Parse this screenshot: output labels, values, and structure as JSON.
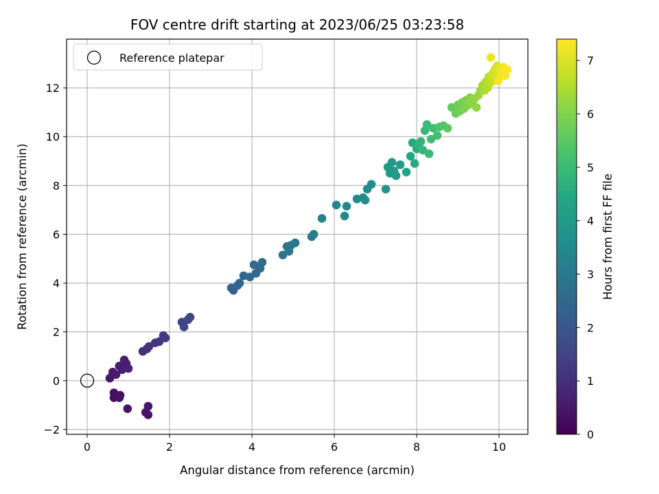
{
  "chart_data": {
    "type": "scatter",
    "title": "FOV centre drift starting at 2023/06/25 03:23:58",
    "xlabel": "Angular distance from reference (arcmin)",
    "ylabel": "Rotation from reference (arcmin)",
    "xlim": [
      -0.5,
      10.7
    ],
    "ylim": [
      -2.2,
      14.0
    ],
    "xticks": [
      0,
      2,
      4,
      6,
      8,
      10
    ],
    "yticks": [
      -2,
      0,
      2,
      4,
      6,
      8,
      10,
      12
    ],
    "grid": true,
    "legend": {
      "placement": "top-left",
      "entries": [
        "Reference platepar"
      ]
    },
    "reference_point": {
      "x": 0,
      "y": 0,
      "label": "Reference platepar"
    },
    "colorbar": {
      "label": "Hours from first FF file",
      "range": [
        0,
        7.4
      ],
      "ticks": [
        0,
        1,
        2,
        3,
        4,
        5,
        6,
        7
      ],
      "colormap": "viridis"
    },
    "series": [
      {
        "points": [
          [
            0.55,
            0.1,
            0.45
          ],
          [
            0.62,
            0.35,
            0.5
          ],
          [
            0.7,
            0.25,
            0.55
          ],
          [
            0.78,
            0.6,
            0.6
          ],
          [
            0.85,
            0.45,
            0.6
          ],
          [
            0.9,
            0.85,
            0.65
          ],
          [
            0.95,
            0.7,
            0.65
          ],
          [
            1.0,
            0.5,
            0.7
          ],
          [
            0.65,
            -0.5,
            0.3
          ],
          [
            0.65,
            -0.7,
            0.3
          ],
          [
            0.8,
            -0.6,
            0.35
          ],
          [
            0.78,
            -0.7,
            0.35
          ],
          [
            0.98,
            -1.15,
            0.4
          ],
          [
            1.42,
            -1.3,
            0.4
          ],
          [
            1.48,
            -1.05,
            0.45
          ],
          [
            1.48,
            -1.4,
            0.45
          ],
          [
            1.35,
            1.2,
            0.9
          ],
          [
            1.45,
            1.3,
            1.0
          ],
          [
            1.5,
            1.4,
            1.05
          ],
          [
            1.65,
            1.55,
            1.1
          ],
          [
            1.75,
            1.6,
            1.15
          ],
          [
            1.85,
            1.85,
            1.2
          ],
          [
            1.9,
            1.75,
            1.2
          ],
          [
            2.3,
            2.4,
            1.5
          ],
          [
            2.35,
            2.2,
            1.55
          ],
          [
            2.45,
            2.5,
            1.6
          ],
          [
            2.5,
            2.6,
            1.65
          ],
          [
            3.5,
            3.8,
            2.3
          ],
          [
            3.55,
            3.7,
            2.35
          ],
          [
            3.65,
            3.9,
            2.4
          ],
          [
            3.7,
            4.0,
            2.4
          ],
          [
            3.8,
            4.3,
            2.45
          ],
          [
            3.95,
            4.25,
            2.5
          ],
          [
            4.05,
            4.75,
            2.55
          ],
          [
            4.1,
            4.4,
            2.55
          ],
          [
            4.2,
            4.6,
            2.6
          ],
          [
            4.25,
            4.85,
            2.6
          ],
          [
            4.75,
            5.15,
            2.85
          ],
          [
            4.85,
            5.5,
            2.9
          ],
          [
            4.9,
            5.3,
            2.9
          ],
          [
            4.95,
            5.55,
            2.95
          ],
          [
            5.05,
            5.65,
            2.95
          ],
          [
            5.45,
            5.9,
            3.1
          ],
          [
            5.5,
            6.0,
            3.15
          ],
          [
            5.7,
            6.65,
            3.2
          ],
          [
            6.05,
            7.2,
            3.35
          ],
          [
            6.25,
            6.75,
            3.4
          ],
          [
            6.3,
            7.15,
            3.4
          ],
          [
            6.55,
            7.45,
            3.5
          ],
          [
            6.7,
            7.5,
            3.5
          ],
          [
            6.75,
            7.4,
            3.55
          ],
          [
            6.8,
            7.85,
            3.55
          ],
          [
            6.9,
            8.05,
            3.6
          ],
          [
            7.25,
            7.85,
            3.8
          ],
          [
            7.3,
            8.75,
            3.9
          ],
          [
            7.35,
            8.5,
            3.95
          ],
          [
            7.4,
            8.95,
            3.95
          ],
          [
            7.45,
            8.6,
            4.0
          ],
          [
            7.5,
            8.4,
            4.0
          ],
          [
            7.6,
            8.85,
            4.05
          ],
          [
            7.75,
            8.55,
            4.3
          ],
          [
            7.85,
            9.2,
            4.4
          ],
          [
            7.9,
            9.75,
            4.5
          ],
          [
            7.95,
            8.9,
            4.5
          ],
          [
            8.0,
            9.5,
            4.6
          ],
          [
            8.05,
            9.65,
            4.7
          ],
          [
            8.1,
            9.8,
            4.8
          ],
          [
            8.15,
            9.45,
            4.85
          ],
          [
            8.2,
            10.25,
            4.9
          ],
          [
            8.25,
            10.5,
            5.0
          ],
          [
            8.3,
            9.3,
            5.0
          ],
          [
            8.35,
            9.9,
            5.05
          ],
          [
            8.4,
            10.35,
            5.1
          ],
          [
            8.5,
            10.05,
            5.2
          ],
          [
            8.55,
            10.4,
            5.3
          ],
          [
            8.65,
            10.45,
            5.4
          ],
          [
            8.75,
            10.35,
            5.5
          ],
          [
            8.85,
            11.2,
            5.6
          ],
          [
            8.95,
            10.95,
            5.7
          ],
          [
            9.0,
            11.3,
            5.75
          ],
          [
            9.05,
            11.05,
            5.8
          ],
          [
            9.1,
            11.4,
            5.85
          ],
          [
            9.15,
            11.15,
            5.9
          ],
          [
            9.2,
            11.5,
            5.95
          ],
          [
            9.25,
            11.3,
            6.0
          ],
          [
            9.3,
            11.6,
            6.05
          ],
          [
            9.35,
            11.4,
            6.1
          ],
          [
            9.4,
            11.55,
            6.15
          ],
          [
            9.45,
            11.2,
            6.2
          ],
          [
            9.5,
            11.7,
            6.25
          ],
          [
            9.55,
            11.9,
            6.3
          ],
          [
            9.6,
            12.1,
            6.35
          ],
          [
            9.65,
            11.9,
            6.4
          ],
          [
            9.68,
            12.25,
            6.5
          ],
          [
            9.72,
            12.0,
            6.55
          ],
          [
            9.75,
            12.45,
            6.6
          ],
          [
            9.78,
            12.2,
            6.65
          ],
          [
            9.8,
            12.35,
            6.7
          ],
          [
            9.82,
            12.5,
            6.75
          ],
          [
            9.85,
            12.6,
            6.8
          ],
          [
            9.87,
            12.3,
            6.85
          ],
          [
            9.9,
            12.75,
            6.9
          ],
          [
            9.92,
            12.55,
            6.95
          ],
          [
            9.95,
            12.9,
            7.0
          ],
          [
            9.98,
            12.65,
            7.05
          ],
          [
            10.0,
            12.8,
            7.1
          ],
          [
            10.02,
            12.45,
            7.15
          ],
          [
            10.05,
            12.7,
            7.2
          ],
          [
            10.08,
            12.6,
            7.25
          ],
          [
            10.1,
            12.85,
            7.3
          ],
          [
            10.15,
            12.5,
            7.35
          ],
          [
            10.2,
            12.75,
            7.4
          ],
          [
            9.8,
            13.25,
            7.2
          ],
          [
            9.98,
            12.3,
            7.3
          ]
        ]
      }
    ]
  }
}
